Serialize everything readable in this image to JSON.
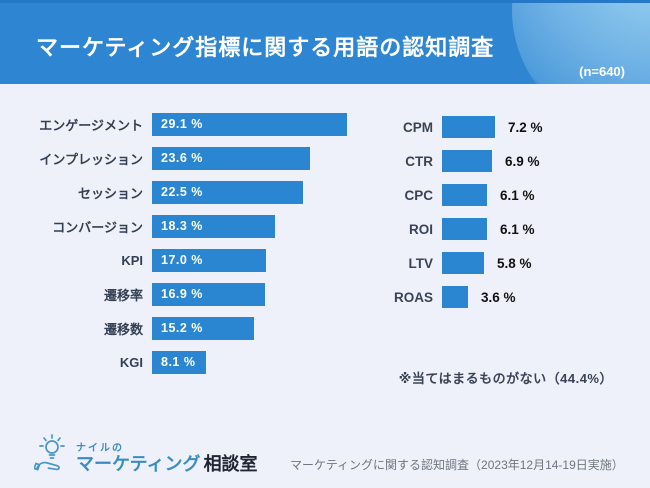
{
  "header": {
    "title": "マーケティング指標に関する用語の認知調査",
    "sample_size": "(n=640)"
  },
  "chart_data": {
    "type": "bar",
    "orientation": "horizontal",
    "title": "マーケティング指標に関する用語の認知調査",
    "sample_size_label": "(n=640)",
    "unit": "%",
    "xlim": [
      0,
      30
    ],
    "grid": false,
    "legend": "none",
    "bar_color": "#2b86d1",
    "columns": [
      {
        "name": "left",
        "value_label_position": "inside",
        "categories": [
          "エンゲージメント",
          "インプレッション",
          "セッション",
          "コンバージョン",
          "KPI",
          "遷移率",
          "遷移数",
          "KGI"
        ],
        "values": [
          29.1,
          23.6,
          22.5,
          18.3,
          17.0,
          16.9,
          15.2,
          8.1
        ],
        "value_labels": [
          "29.1 %",
          "23.6 %",
          "22.5 %",
          "18.3 %",
          "17.0 %",
          "16.9 %",
          "15.2 %",
          "8.1 %"
        ]
      },
      {
        "name": "right",
        "value_label_position": "outside",
        "categories": [
          "CPM",
          "CTR",
          "CPC",
          "ROI",
          "LTV",
          "ROAS"
        ],
        "values": [
          7.2,
          6.9,
          6.1,
          6.1,
          5.8,
          3.6
        ],
        "value_labels": [
          "7.2 %",
          "6.9 %",
          "6.1 %",
          "6.1 %",
          "5.8 %",
          "3.6 %"
        ]
      }
    ],
    "note": "※当てはまるものがない（44.4%）"
  },
  "footer": {
    "logo": {
      "line1": "ナイルの",
      "brand": "マーケティング",
      "suffix": "相談室",
      "icon": "lightbulb-hand-icon"
    },
    "source": "マーケティングに関する認知調査（2023年12月14-19日実施）"
  },
  "colors": {
    "header_bg": "#2e86d2",
    "header_top_strip": "#2478c6",
    "header_blob": "#a9dcf6",
    "page_bg": "#eef1fa",
    "bar": "#2b86d1",
    "category_text": "#333f52",
    "value_text_inside": "#ffffff",
    "value_text_outside": "#111111",
    "note_text": "#3a4356",
    "source_text": "#6e7481",
    "logo_blue": "#3b8cc4",
    "logo_dark": "#1e2633"
  }
}
